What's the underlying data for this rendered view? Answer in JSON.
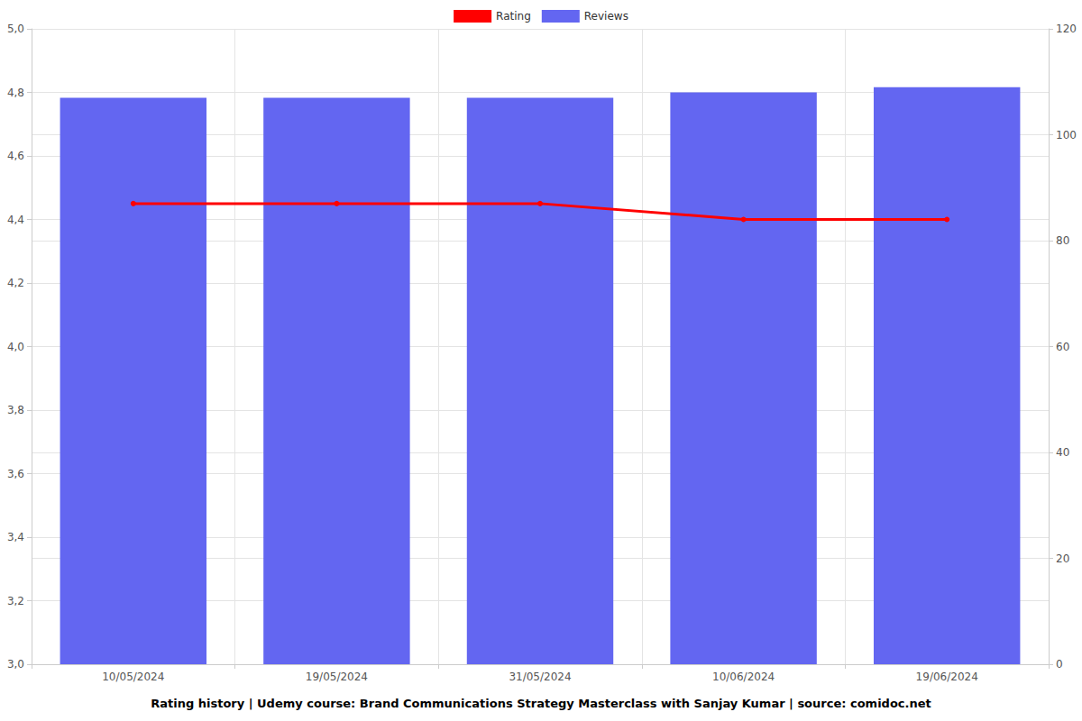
{
  "chart_data": {
    "type": "bar",
    "title": "Rating history | Udemy course: Brand Communications Strategy Masterclass with Sanjay Kumar | source: comidoc.net",
    "categories": [
      "10/05/2024",
      "19/05/2024",
      "31/05/2024",
      "10/06/2024",
      "19/06/2024"
    ],
    "series": [
      {
        "name": "Rating",
        "type": "line",
        "color": "#ff0000",
        "marker": "circle",
        "values": [
          4.45,
          4.45,
          4.45,
          4.4,
          4.4
        ]
      },
      {
        "name": "Reviews",
        "type": "bar",
        "color": "#6366f1",
        "axis": "y2",
        "values": [
          107,
          107,
          107,
          108,
          109
        ]
      }
    ],
    "ylim": [
      3.0,
      5.0
    ],
    "yticks": [
      {
        "value": 3.0,
        "label": "3,0"
      },
      {
        "value": 3.2,
        "label": "3,2"
      },
      {
        "value": 3.4,
        "label": "3,4"
      },
      {
        "value": 3.6,
        "label": "3,6"
      },
      {
        "value": 3.8,
        "label": "3,8"
      },
      {
        "value": 4.0,
        "label": "4,0"
      },
      {
        "value": 4.2,
        "label": "4,2"
      },
      {
        "value": 4.4,
        "label": "4,4"
      },
      {
        "value": 4.6,
        "label": "4,6"
      },
      {
        "value": 4.8,
        "label": "4,8"
      },
      {
        "value": 5.0,
        "label": "5,0"
      }
    ],
    "y2lim": [
      0,
      120
    ],
    "y2ticks": [
      0,
      20,
      40,
      60,
      80,
      100,
      120
    ],
    "grid": true,
    "legend": "top"
  }
}
